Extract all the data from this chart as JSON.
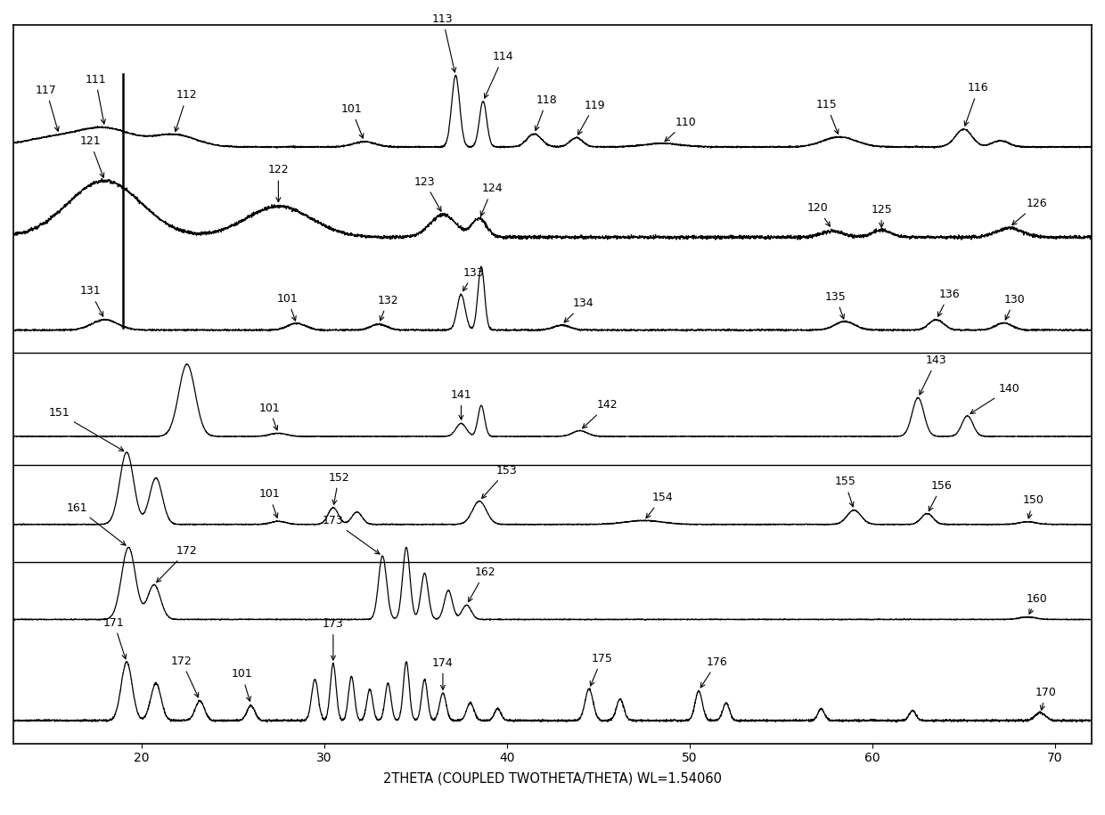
{
  "xlim": [
    13,
    72
  ],
  "xlabel": "2THETA (COUPLED TWOTHETA/THETA) WL=1.54060",
  "xticks": [
    20,
    30,
    40,
    50,
    60,
    70
  ],
  "figsize": [
    12.4,
    9.15
  ],
  "dpi": 100
}
